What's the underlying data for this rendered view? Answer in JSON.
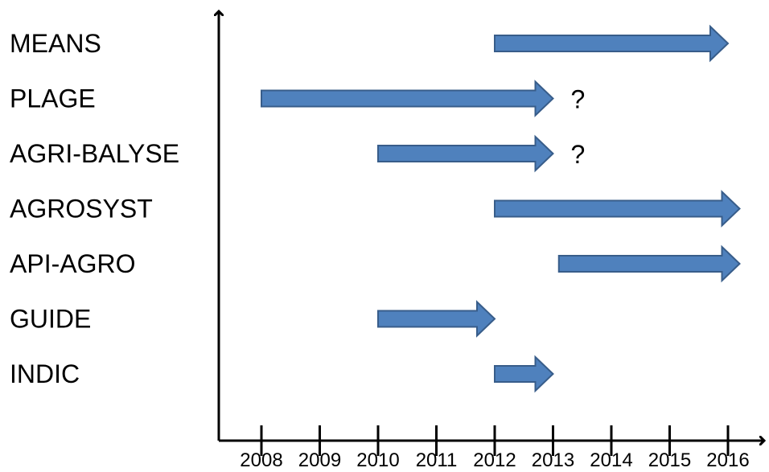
{
  "colors": {
    "arrow_fill": "#4F81BD",
    "arrow_stroke": "#385D8A",
    "axis": "#000000",
    "text": "#000000"
  },
  "chart_data": {
    "type": "timeline",
    "x_ticks": [
      "2008",
      "2009",
      "2010",
      "2011",
      "2012",
      "2013",
      "2014",
      "2015",
      "2016"
    ],
    "rows": [
      {
        "label": "MEANS",
        "start": 2012,
        "end": 2016,
        "note": ""
      },
      {
        "label": "PLAGE",
        "start": 2008,
        "end": 2013,
        "note": "?"
      },
      {
        "label": "AGRI-BALYSE",
        "start": 2010,
        "end": 2013,
        "note": "?"
      },
      {
        "label": "AGROSYST",
        "start": 2012,
        "end": 2016.2,
        "note": ""
      },
      {
        "label": "API-AGRO",
        "start": 2013.1,
        "end": 2016.2,
        "note": ""
      },
      {
        "label": "GUIDE",
        "start": 2010,
        "end": 2012,
        "note": ""
      },
      {
        "label": "INDIC",
        "start": 2012,
        "end": 2013,
        "note": ""
      }
    ]
  }
}
